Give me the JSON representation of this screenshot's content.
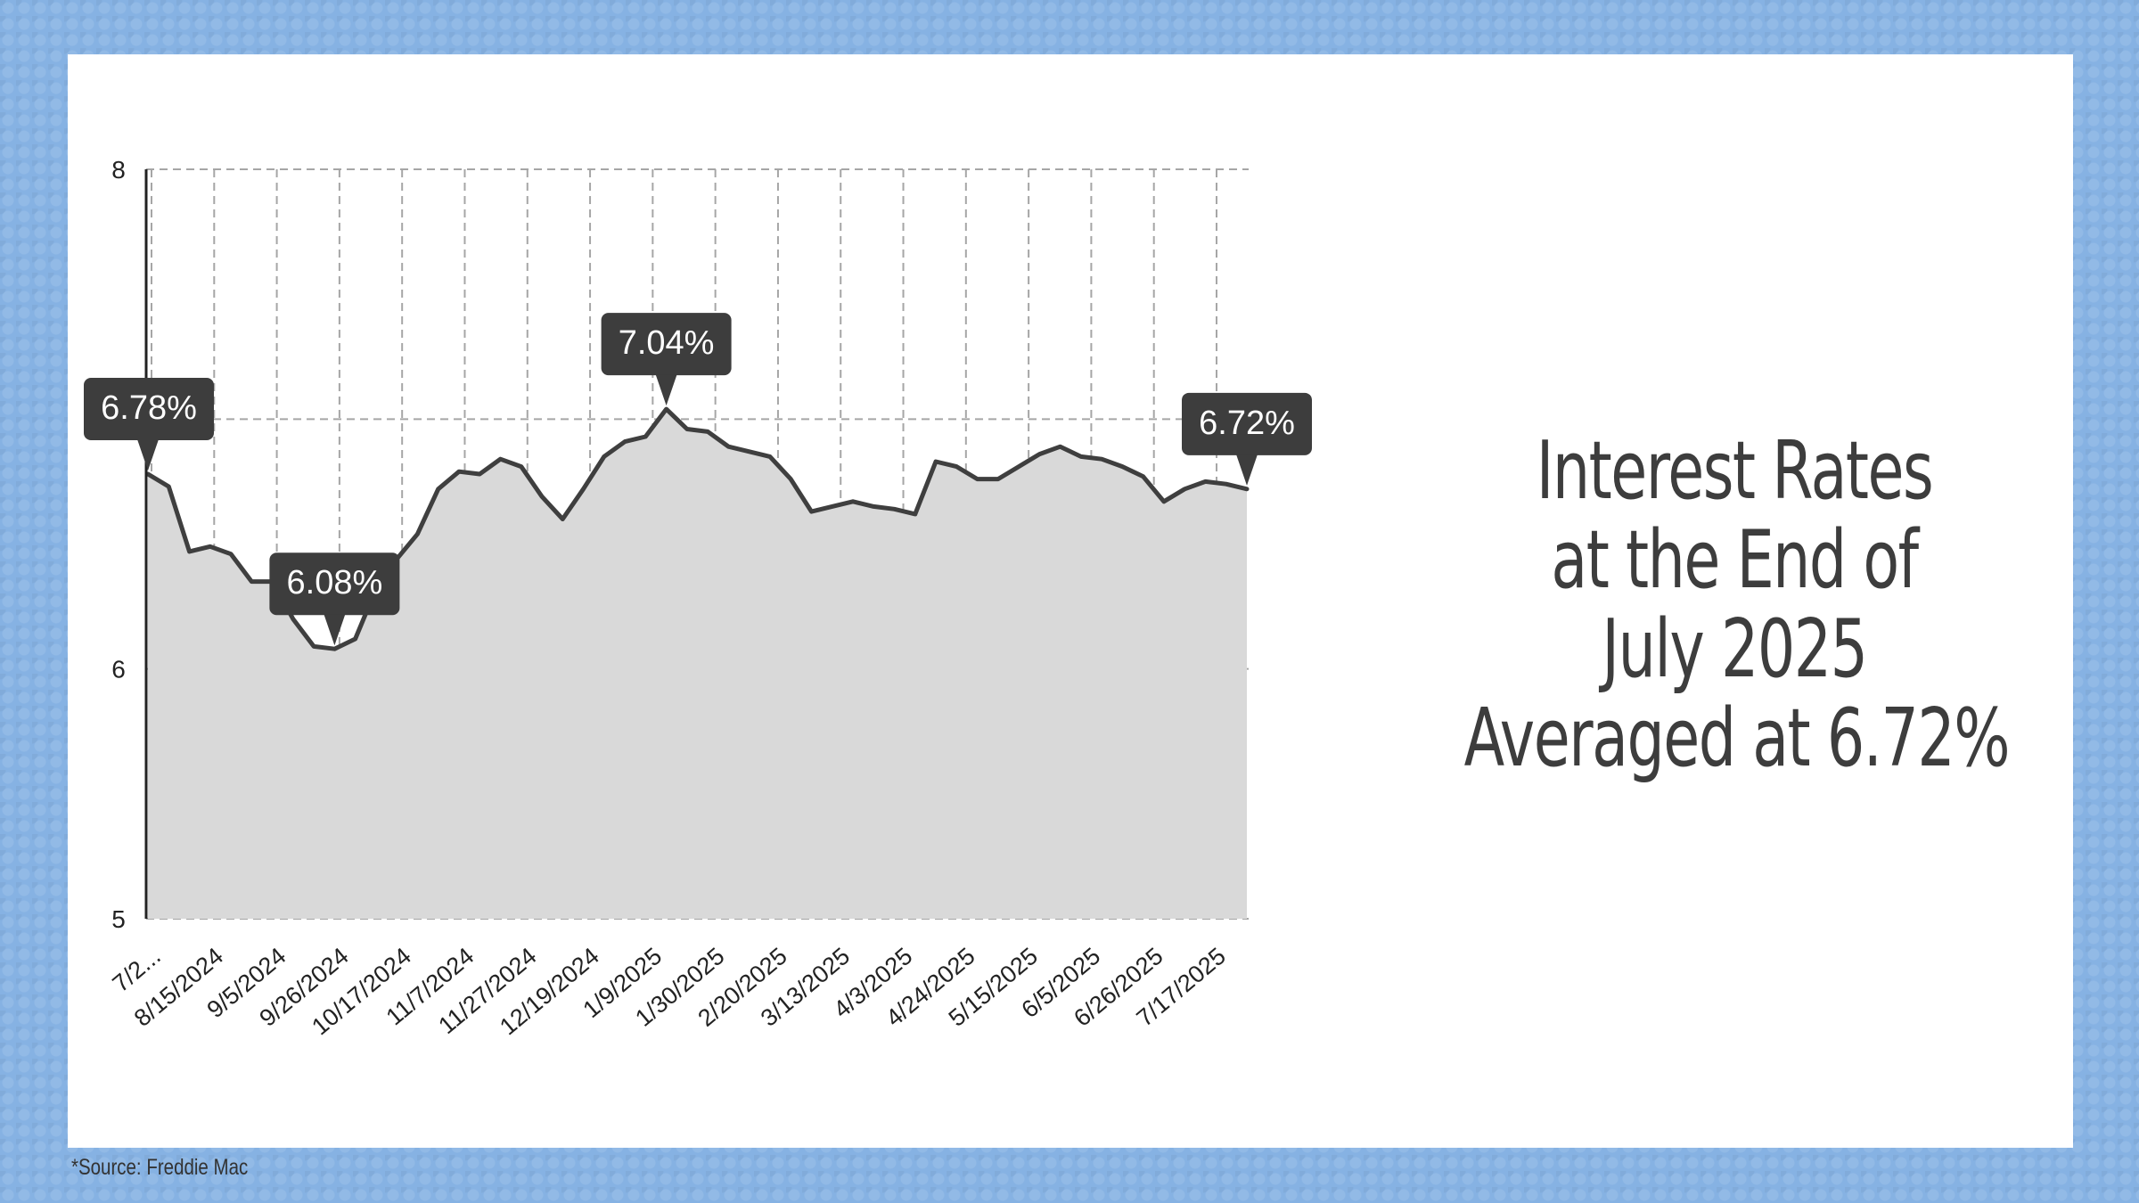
{
  "headline": {
    "line1": "Interest Rates",
    "line2": "at the End of",
    "line3": "July 2025",
    "line4": "Averaged at 6.72%"
  },
  "source": "*Source: Freddie Mac",
  "colors": {
    "line": "#3f3f3f",
    "area": "#d9d9d9",
    "grid": "#a6a6a6",
    "callout": "#3d3d3d"
  },
  "chart_data": {
    "type": "area",
    "title": "",
    "xlabel": "",
    "ylabel": "",
    "ylim": [
      5,
      8
    ],
    "yticks": [
      5,
      6,
      8
    ],
    "grid": true,
    "x_tick_labels": [
      "7/2...",
      "8/15/2024",
      "9/5/2024",
      "9/26/2024",
      "10/17/2024",
      "11/7/2024",
      "11/27/2024",
      "12/19/2024",
      "1/9/2025",
      "1/30/2025",
      "2/20/2025",
      "3/13/2025",
      "4/3/2025",
      "4/24/2025",
      "5/15/2025",
      "6/5/2025",
      "6/26/2025",
      "7/17/2025"
    ],
    "values": [
      6.78,
      6.73,
      6.47,
      6.49,
      6.46,
      6.35,
      6.35,
      6.2,
      6.09,
      6.08,
      6.12,
      6.32,
      6.44,
      6.54,
      6.72,
      6.79,
      6.78,
      6.84,
      6.81,
      6.69,
      6.6,
      6.72,
      6.85,
      6.91,
      6.93,
      7.04,
      6.96,
      6.95,
      6.89,
      6.87,
      6.85,
      6.76,
      6.63,
      6.65,
      6.67,
      6.65,
      6.64,
      6.62,
      6.83,
      6.81,
      6.76,
      6.76,
      6.81,
      6.86,
      6.89,
      6.85,
      6.84,
      6.81,
      6.77,
      6.67,
      6.72,
      6.75,
      6.74,
      6.72
    ],
    "callouts": [
      {
        "index": 0,
        "label": "6.78%"
      },
      {
        "index": 9,
        "label": "6.08%"
      },
      {
        "index": 25,
        "label": "7.04%"
      },
      {
        "index": 53,
        "label": "6.72%"
      }
    ]
  }
}
